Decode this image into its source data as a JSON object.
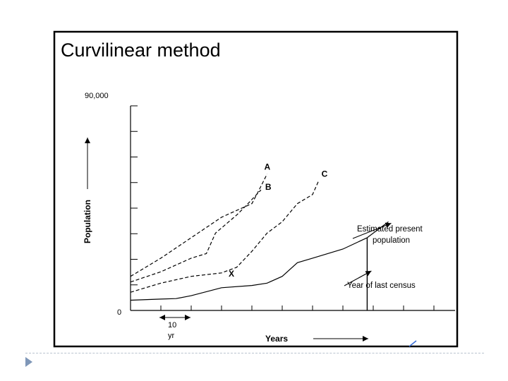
{
  "slide": {
    "accent": "#7f97b8",
    "pen_mark_color": "#3a6fd8"
  },
  "figure": {
    "title": "Curvilinear method",
    "ylabel": "Population",
    "xlabel": "Years",
    "y_top_label": "90,000",
    "y_origin_label": "0",
    "scale_bar": {
      "value": "10",
      "unit": "yr"
    },
    "annotations": {
      "estimated": [
        "Estimated present",
        "population"
      ],
      "last_census": "Year of last census"
    }
  },
  "chart_data": {
    "type": "line",
    "title": "Curvilinear method",
    "xlabel": "Years",
    "ylabel": "Population",
    "ylim": [
      0,
      90000
    ],
    "x_unit": "yr",
    "series": [
      {
        "name": "A",
        "style": "dashed",
        "x": [
          0,
          10,
          20,
          30,
          35,
          40,
          42,
          45
        ],
        "y": [
          15000,
          23000,
          32000,
          41000,
          44000,
          47000,
          52000,
          60000
        ]
      },
      {
        "name": "B",
        "style": "dashed",
        "x": [
          0,
          10,
          15,
          20,
          25,
          28,
          35,
          38,
          43
        ],
        "y": [
          12500,
          17000,
          20000,
          23000,
          25000,
          34000,
          42000,
          46000,
          53000
        ]
      },
      {
        "name": "C",
        "style": "dashed",
        "x": [
          0,
          10,
          20,
          30,
          35,
          40,
          45,
          50,
          55,
          60,
          62
        ],
        "y": [
          8000,
          12000,
          15000,
          16500,
          19000,
          26000,
          34000,
          39000,
          47000,
          51000,
          57000
        ]
      },
      {
        "name": "X",
        "style": "solid",
        "x": [
          0,
          10,
          15,
          20,
          30,
          40,
          45,
          50,
          55,
          60,
          70,
          78
        ],
        "y": [
          4500,
          5000,
          5200,
          6500,
          10000,
          11000,
          12000,
          15000,
          21000,
          23000,
          27000,
          32000
        ]
      },
      {
        "name": "",
        "style": "solid",
        "x": [
          78,
          85
        ],
        "y": [
          32000,
          39000
        ]
      }
    ],
    "markers": {
      "year_of_last_census": {
        "x": 78,
        "y": 32000
      },
      "estimated_present_population": {
        "x": 85,
        "y": 39000
      }
    },
    "grid": false
  }
}
